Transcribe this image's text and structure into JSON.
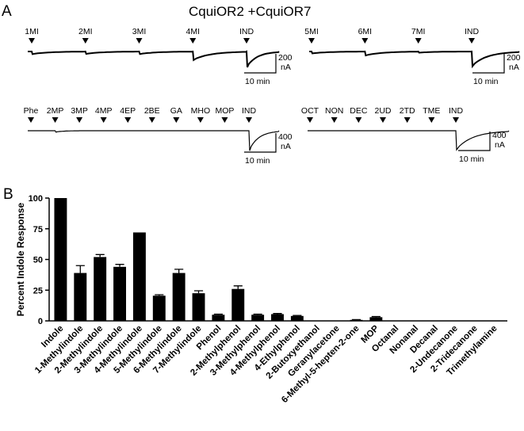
{
  "panel_a": {
    "label": "A",
    "title": "CquiOR2 +CquiOR7",
    "traces": [
      {
        "stimuli": [
          "1MI",
          "2MI",
          "3MI",
          "4MI",
          "IND"
        ],
        "responses_nA": [
          28,
          25,
          27,
          90,
          165
        ],
        "scale": {
          "current": "200",
          "current_unit": "nA",
          "time": "10 min"
        }
      },
      {
        "stimuli": [
          "5MI",
          "6MI",
          "7MI",
          "IND"
        ],
        "responses_nA": [
          20,
          42,
          12,
          155
        ],
        "scale": {
          "current": "200",
          "current_unit": "nA",
          "time": "10 min"
        }
      },
      {
        "stimuli": [
          "Phe",
          "2MP",
          "3MP",
          "4MP",
          "4EP",
          "2BE",
          "GA",
          "MHO",
          "MOP",
          "IND"
        ],
        "responses_nA": [
          0,
          30,
          2,
          2,
          2,
          0,
          0,
          0,
          5,
          420
        ],
        "scale": {
          "current": "400",
          "current_unit": "nA",
          "time": "10 min"
        }
      },
      {
        "stimuli": [
          "OCT",
          "NON",
          "DEC",
          "2UD",
          "2TD",
          "TME",
          "IND"
        ],
        "responses_nA": [
          0,
          0,
          0,
          0,
          0,
          0,
          400
        ],
        "scale": {
          "current": "400",
          "current_unit": "nA",
          "time": "10 min"
        }
      }
    ]
  },
  "panel_b": {
    "label": "B"
  },
  "chart_data": {
    "type": "bar",
    "ylabel": "Percent Indole Response",
    "xlabel": "",
    "ylim": [
      0,
      100
    ],
    "yticks": [
      "0",
      "25",
      "50",
      "75",
      "100"
    ],
    "error_bars": true,
    "categories": [
      "Indole",
      "1-Methylindole",
      "2-Methylindole",
      "3-Methylindole",
      "4-Methylindole",
      "5-Methylindole",
      "6-Methylindole",
      "7-Methylindole",
      "Phenol",
      "2-Methylphenol",
      "3-Methylphenol",
      "4-Methylphenol",
      "4-Ethylphenol",
      "2-Butoxyethanol",
      "Geranylacetone",
      "6-Methyl-5-hepten-2-one",
      "MOP",
      "Octanal",
      "Nonanal",
      "Decanal",
      "2-Undecanone",
      "2-Tridecanone",
      "Trimethylamine"
    ],
    "values": [
      100,
      39,
      52,
      44,
      72,
      20.5,
      39,
      22.5,
      5,
      26,
      5,
      5.5,
      4,
      0,
      0,
      0.8,
      3,
      0,
      0,
      0,
      0,
      0,
      0
    ],
    "errors": [
      0,
      6,
      2,
      2,
      0,
      0.8,
      3,
      2,
      0.5,
      2.5,
      0.5,
      0.5,
      0.4,
      0,
      0,
      0.2,
      0.5,
      0,
      0,
      0,
      0,
      0,
      0
    ]
  }
}
